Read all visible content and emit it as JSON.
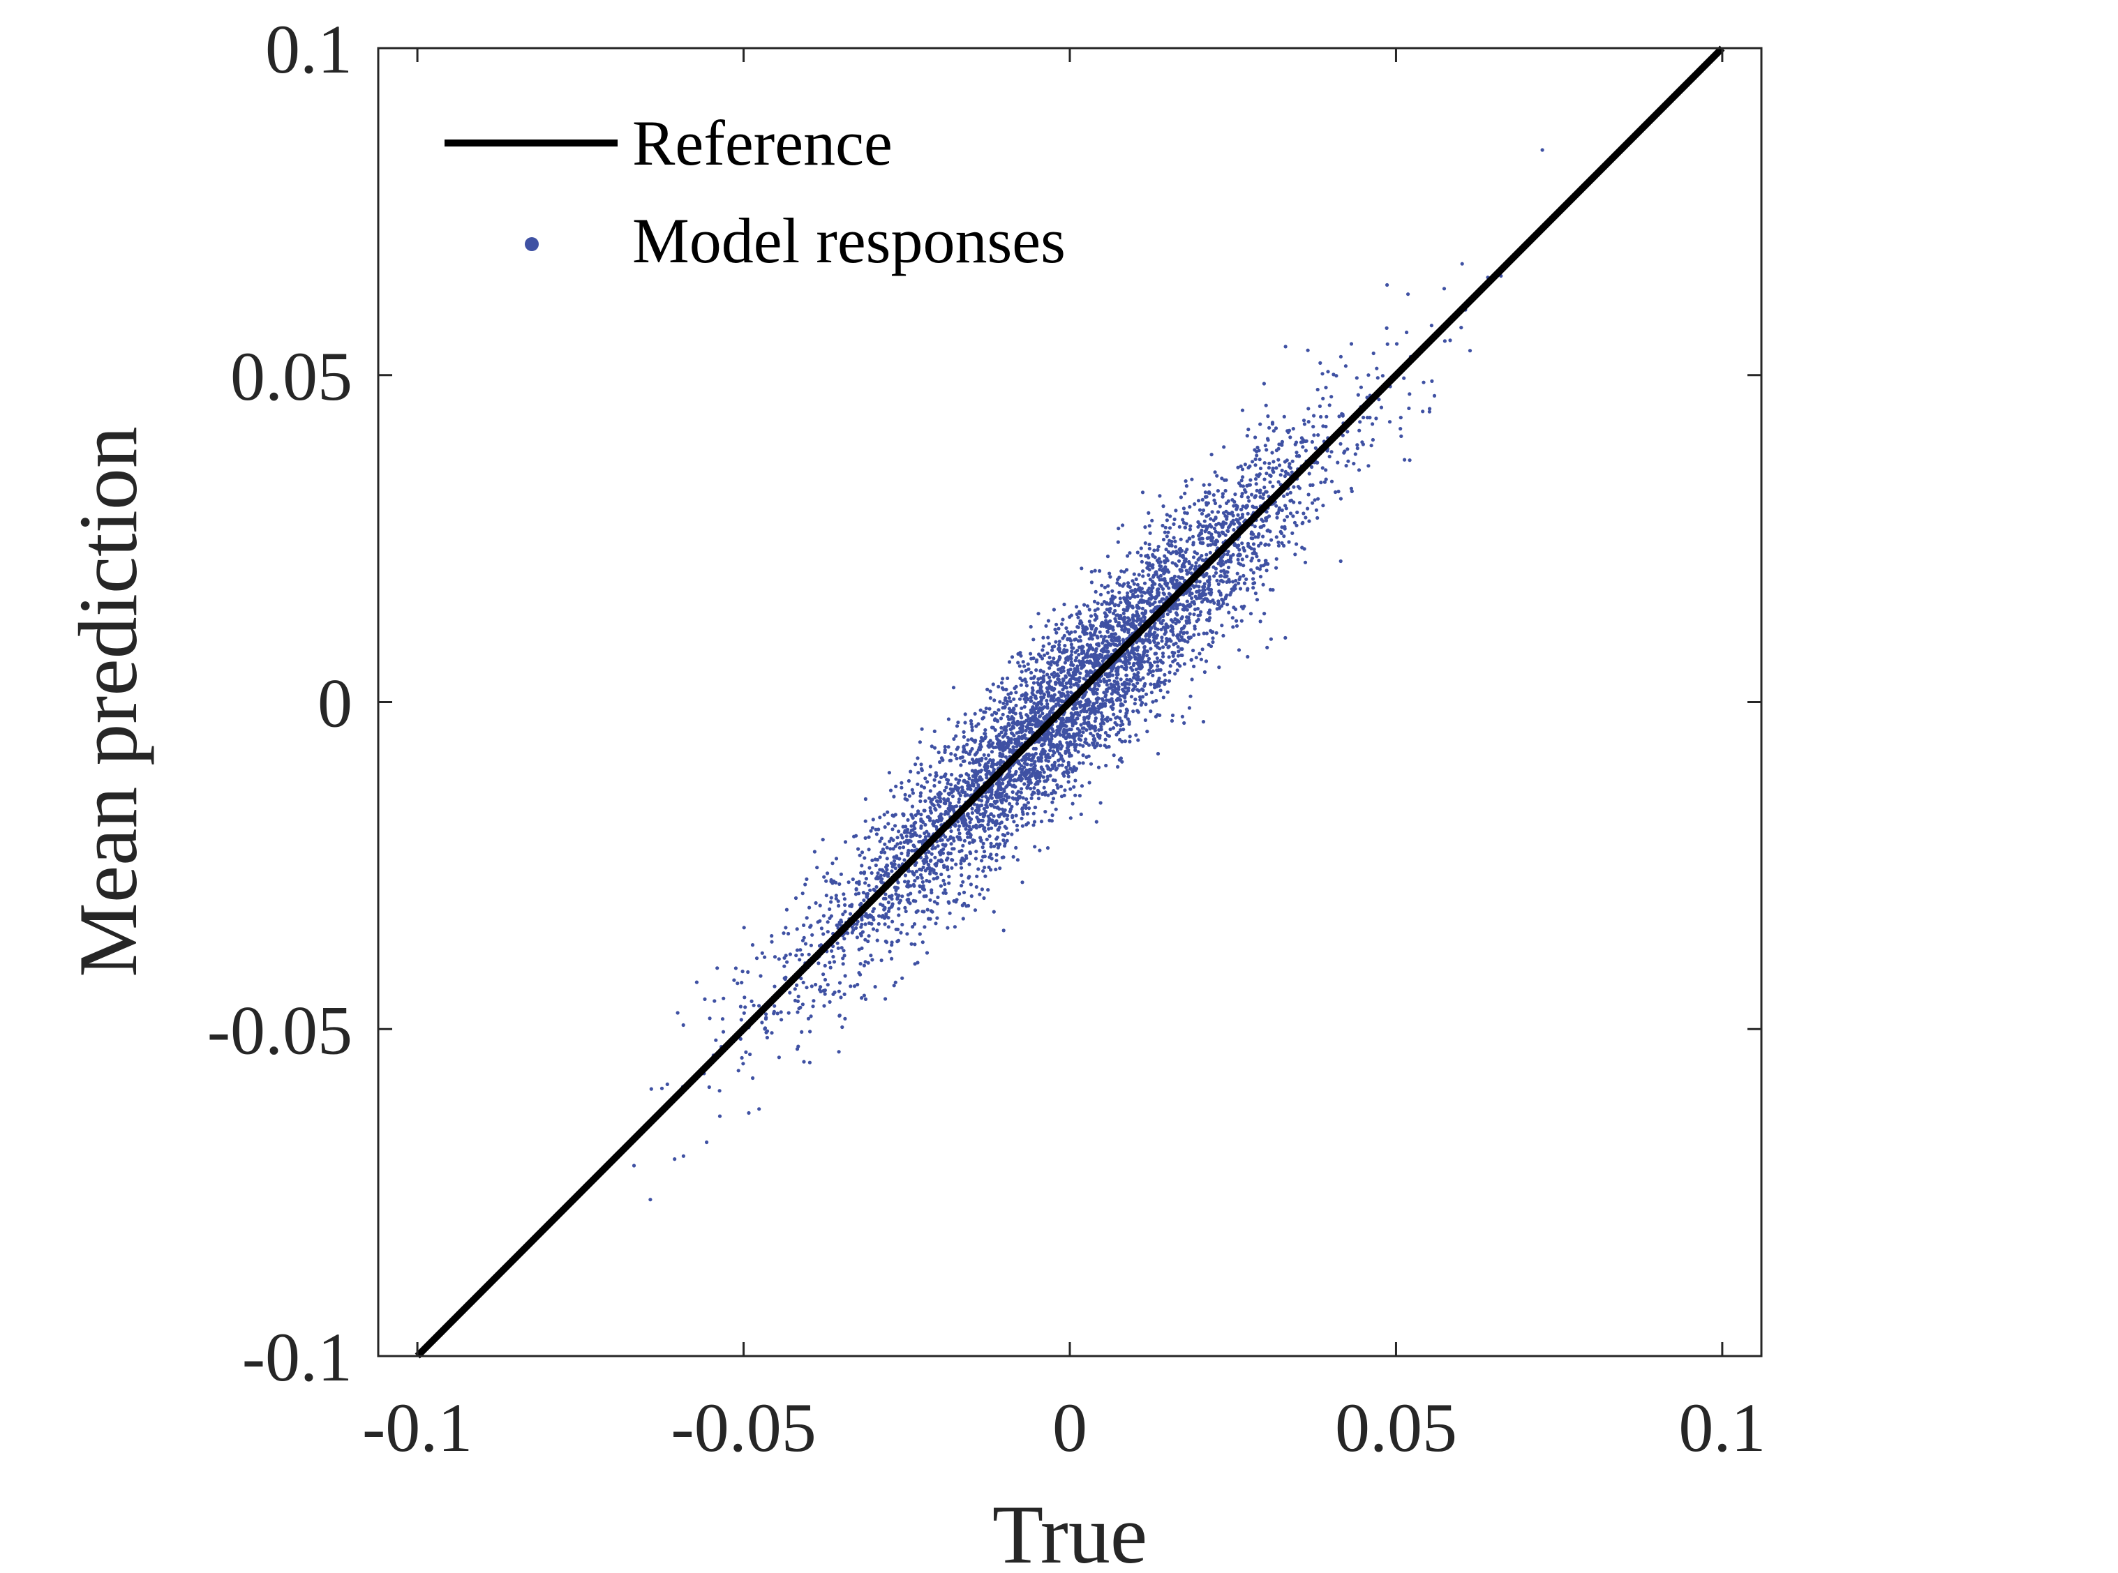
{
  "chart_data": {
    "type": "scatter",
    "title": "",
    "xlabel": "True",
    "ylabel": "Mean prediction",
    "xlim": [
      -0.106,
      0.106
    ],
    "ylim": [
      -0.1,
      0.1
    ],
    "xticks": [
      -0.1,
      -0.05,
      0,
      0.05,
      0.1
    ],
    "xtick_labels": [
      "-0.1",
      "-0.05",
      "0",
      "0.05",
      "0.1"
    ],
    "yticks": [
      -0.1,
      -0.05,
      0,
      0.05,
      0.1
    ],
    "ytick_labels": [
      "-0.1",
      "-0.05",
      "0",
      "0.05",
      "0.1"
    ],
    "grid": false,
    "legend": {
      "placement": "top-left",
      "entries": [
        {
          "label": "Reference",
          "type": "line",
          "color": "#000000"
        },
        {
          "label": "Model responses",
          "type": "marker",
          "color": "#3f51a3"
        }
      ]
    },
    "series": [
      {
        "name": "Reference",
        "type": "line",
        "x": [
          -0.1,
          0.1
        ],
        "y": [
          -0.1,
          0.1
        ],
        "color": "#000000"
      },
      {
        "name": "Model responses",
        "type": "scatter",
        "color": "#3f51a3",
        "distribution": {
          "n": 5000,
          "x_mean": 0.0,
          "x_std": 0.02,
          "x_range": [
            -0.068,
            0.075
          ],
          "slope": 0.97,
          "residual_std": 0.0065
        }
      }
    ]
  }
}
